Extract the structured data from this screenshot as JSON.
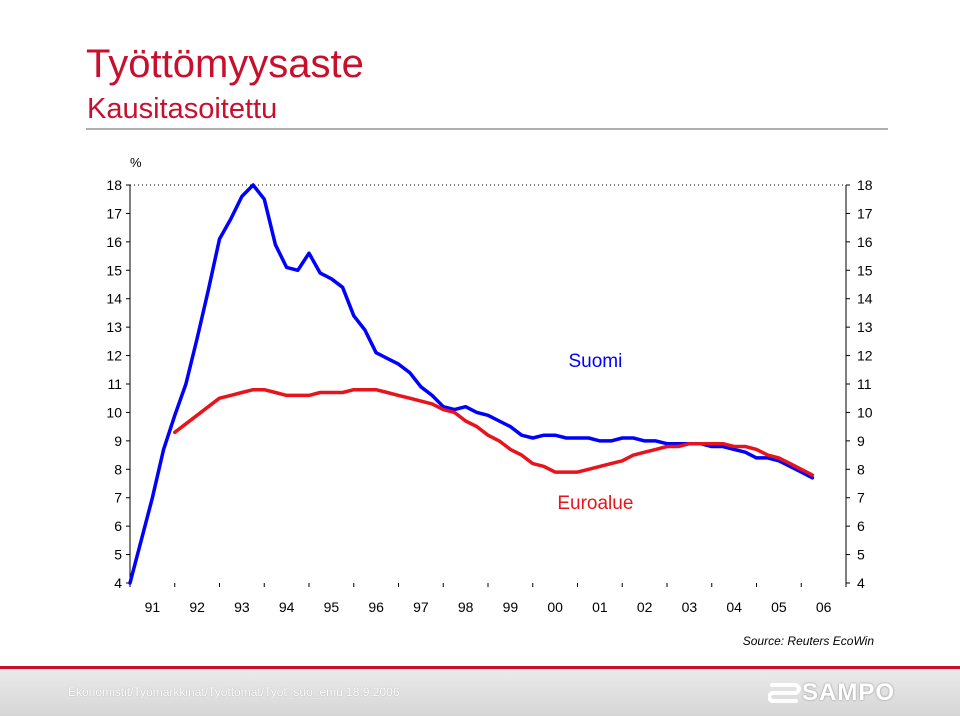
{
  "header": {
    "title": "Työttömyysaste",
    "subtitle": "Kausitasoitettu"
  },
  "chart_data": {
    "type": "line",
    "unit_label": "%",
    "ylim": [
      4,
      18
    ],
    "yticks": [
      4,
      5,
      6,
      7,
      8,
      9,
      10,
      11,
      12,
      13,
      14,
      15,
      16,
      17,
      18
    ],
    "x_range": [
      1991,
      2007
    ],
    "categories": [
      "91",
      "92",
      "93",
      "94",
      "95",
      "96",
      "97",
      "98",
      "99",
      "00",
      "01",
      "02",
      "03",
      "04",
      "05",
      "06"
    ],
    "grid": false,
    "series": [
      {
        "name": "Suomi",
        "color": "#0000ff",
        "x": [
          1991.0,
          1991.25,
          1991.5,
          1991.75,
          1992.0,
          1992.25,
          1992.5,
          1992.75,
          1993.0,
          1993.25,
          1993.5,
          1993.75,
          1994.0,
          1994.25,
          1994.5,
          1994.75,
          1995.0,
          1995.25,
          1995.5,
          1995.75,
          1996.0,
          1996.25,
          1996.5,
          1996.75,
          1997.0,
          1997.25,
          1997.5,
          1997.75,
          1998.0,
          1998.25,
          1998.5,
          1998.75,
          1999.0,
          1999.25,
          1999.5,
          1999.75,
          2000.0,
          2000.25,
          2000.5,
          2000.75,
          2001.0,
          2001.25,
          2001.5,
          2001.75,
          2002.0,
          2002.25,
          2002.5,
          2002.75,
          2003.0,
          2003.25,
          2003.5,
          2003.75,
          2004.0,
          2004.25,
          2004.5,
          2004.75,
          2005.0,
          2005.25,
          2005.5,
          2005.75,
          2006.0,
          2006.25
        ],
        "y": [
          4.0,
          5.5,
          7.0,
          8.7,
          9.9,
          11.0,
          12.6,
          14.3,
          16.1,
          16.8,
          17.6,
          18.0,
          17.5,
          15.9,
          15.1,
          15.0,
          15.6,
          14.9,
          14.7,
          14.4,
          13.4,
          12.9,
          12.1,
          11.9,
          11.7,
          11.4,
          10.9,
          10.6,
          10.2,
          10.1,
          10.2,
          10.0,
          9.9,
          9.7,
          9.5,
          9.2,
          9.1,
          9.2,
          9.2,
          9.1,
          9.1,
          9.1,
          9.0,
          9.0,
          9.1,
          9.1,
          9.0,
          9.0,
          8.9,
          8.9,
          8.9,
          8.9,
          8.8,
          8.8,
          8.7,
          8.6,
          8.4,
          8.4,
          8.3,
          8.1,
          7.9,
          7.7
        ]
      },
      {
        "name": "Euroalue",
        "color": "#e8141c",
        "x": [
          1992.0,
          1992.25,
          1992.5,
          1992.75,
          1993.0,
          1993.25,
          1993.5,
          1993.75,
          1994.0,
          1994.25,
          1994.5,
          1994.75,
          1995.0,
          1995.25,
          1995.5,
          1995.75,
          1996.0,
          1996.25,
          1996.5,
          1996.75,
          1997.0,
          1997.25,
          1997.5,
          1997.75,
          1998.0,
          1998.25,
          1998.5,
          1998.75,
          1999.0,
          1999.25,
          1999.5,
          1999.75,
          2000.0,
          2000.25,
          2000.5,
          2000.75,
          2001.0,
          2001.25,
          2001.5,
          2001.75,
          2002.0,
          2002.25,
          2002.5,
          2002.75,
          2003.0,
          2003.25,
          2003.5,
          2003.75,
          2004.0,
          2004.25,
          2004.5,
          2004.75,
          2005.0,
          2005.25,
          2005.5,
          2005.75,
          2006.0,
          2006.25
        ],
        "y": [
          9.3,
          9.6,
          9.9,
          10.2,
          10.5,
          10.6,
          10.7,
          10.8,
          10.8,
          10.7,
          10.6,
          10.6,
          10.6,
          10.7,
          10.7,
          10.7,
          10.8,
          10.8,
          10.8,
          10.7,
          10.6,
          10.5,
          10.4,
          10.3,
          10.1,
          10.0,
          9.7,
          9.5,
          9.2,
          9.0,
          8.7,
          8.5,
          8.2,
          8.1,
          7.9,
          7.9,
          7.9,
          8.0,
          8.1,
          8.2,
          8.3,
          8.5,
          8.6,
          8.7,
          8.8,
          8.8,
          8.9,
          8.9,
          8.9,
          8.9,
          8.8,
          8.8,
          8.7,
          8.5,
          8.4,
          8.2,
          8.0,
          7.8
        ]
      }
    ],
    "annotations": [
      "Suomi",
      "Euroalue"
    ],
    "source": "Source: Reuters EcoWin"
  },
  "footer": {
    "path": "Ekonomistit/Työmarkkinat/Työttömät/Työt_suo_emu   18.9.2006",
    "logo_text": "SAMPO",
    "logo_icon": "sampo-s-logo"
  }
}
